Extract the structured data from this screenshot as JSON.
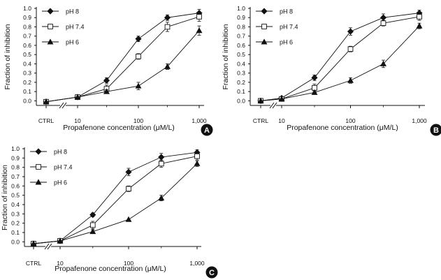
{
  "figure": {
    "ytick_labels": [
      "0.0",
      "0.1",
      "0.2",
      "0.3",
      "0.4",
      "0.5",
      "0.6",
      "0.7",
      "0.8",
      "0.9",
      "1.0"
    ],
    "xtick_labels": [
      "CTRL",
      "10",
      "100",
      "1,000"
    ],
    "colors": {
      "ink": "#111111",
      "open_marker_fill": "#ffffff"
    },
    "markers": {
      "pH 8": "filled-diamond",
      "pH 7.4": "open-square",
      "pH 6": "filled-triangle"
    }
  },
  "chart_data": [
    {
      "type": "line",
      "panel_label": "A",
      "xlabel": "Propafenone concentration (μM/L)",
      "ylabel": "Fraction of inhibition",
      "x_scale": "log",
      "x": [
        "CTRL",
        10,
        30,
        100,
        300,
        1000
      ],
      "xticks": [
        "CTRL",
        "10",
        "100",
        "1,000"
      ],
      "ylim": [
        -0.05,
        1.0
      ],
      "legend": "top-left",
      "series": [
        {
          "name": "pH 8",
          "values": [
            -0.01,
            0.04,
            0.22,
            0.67,
            0.9,
            0.95
          ],
          "errors": [
            0.01,
            0.02,
            0.03,
            0.03,
            0.03,
            0.04
          ]
        },
        {
          "name": "pH 7.4",
          "values": [
            -0.01,
            0.04,
            0.13,
            0.48,
            0.8,
            0.91
          ],
          "errors": [
            0.01,
            0.02,
            0.04,
            0.03,
            0.05,
            0.05
          ]
        },
        {
          "name": "pH 6",
          "values": [
            -0.01,
            0.04,
            0.1,
            0.16,
            0.37,
            0.76
          ],
          "errors": [
            0.01,
            0.01,
            0.02,
            0.04,
            0.03,
            0.05
          ]
        }
      ]
    },
    {
      "type": "line",
      "panel_label": "B",
      "xlabel": "Propafenone concentration (μM/L)",
      "ylabel": "Fraction of inhibition",
      "x_scale": "log",
      "x": [
        "CTRL",
        10,
        30,
        100,
        300,
        1000
      ],
      "xticks": [
        "CTRL",
        "10",
        "100",
        "1,000"
      ],
      "ylim": [
        -0.05,
        1.0
      ],
      "legend": "top-left",
      "series": [
        {
          "name": "pH 8",
          "values": [
            0.0,
            0.03,
            0.25,
            0.75,
            0.9,
            0.95
          ],
          "errors": [
            0.01,
            0.01,
            0.03,
            0.04,
            0.04,
            0.03
          ]
        },
        {
          "name": "pH 7.4",
          "values": [
            0.0,
            0.02,
            0.14,
            0.56,
            0.84,
            0.91
          ],
          "errors": [
            0.01,
            0.01,
            0.04,
            0.03,
            0.03,
            0.04
          ]
        },
        {
          "name": "pH 6",
          "values": [
            0.0,
            0.02,
            0.09,
            0.22,
            0.4,
            0.81
          ],
          "errors": [
            0.01,
            0.01,
            0.02,
            0.03,
            0.04,
            0.03
          ]
        }
      ]
    },
    {
      "type": "line",
      "panel_label": "C",
      "xlabel": "Propafenone concentration (μM/L)",
      "ylabel": "Fraction of inhibition",
      "x_scale": "log",
      "x": [
        "CTRL",
        10,
        30,
        100,
        300,
        1000
      ],
      "xticks": [
        "CTRL",
        "10",
        "100",
        "1,000"
      ],
      "ylim": [
        -0.05,
        1.0
      ],
      "legend": "top-left",
      "series": [
        {
          "name": "pH 8",
          "values": [
            -0.02,
            0.01,
            0.29,
            0.75,
            0.91,
            0.96
          ],
          "errors": [
            0.01,
            0.01,
            0.02,
            0.04,
            0.04,
            0.03
          ]
        },
        {
          "name": "pH 7.4",
          "values": [
            -0.02,
            0.01,
            0.18,
            0.57,
            0.84,
            0.92
          ],
          "errors": [
            0.01,
            0.01,
            0.04,
            0.03,
            0.04,
            0.04
          ]
        },
        {
          "name": "pH 6",
          "values": [
            -0.02,
            0.01,
            0.11,
            0.24,
            0.47,
            0.84
          ],
          "errors": [
            0.01,
            0.01,
            0.02,
            0.01,
            0.03,
            0.03
          ]
        }
      ]
    }
  ]
}
